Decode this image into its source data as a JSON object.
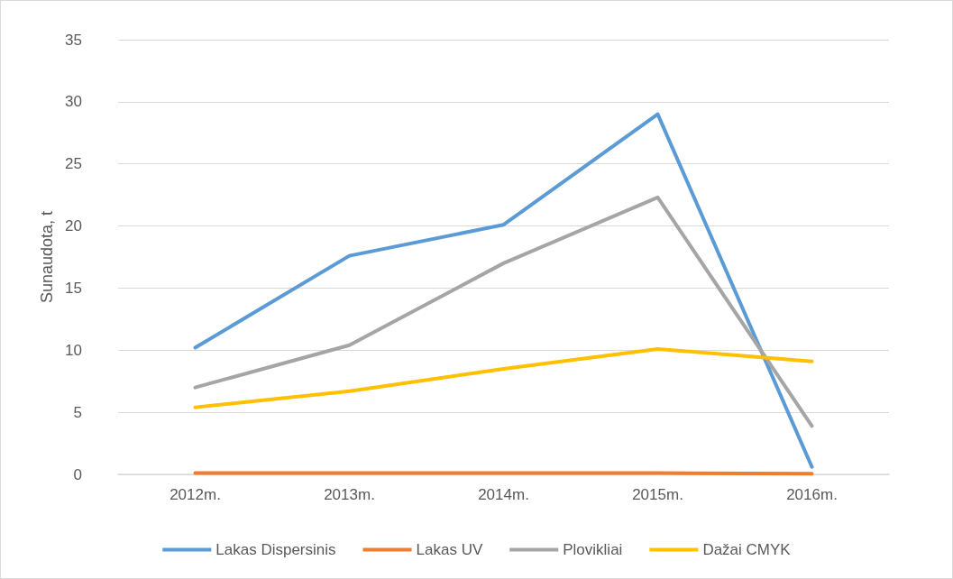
{
  "chart_data": {
    "type": "line",
    "ylabel": "Sunaudota, t",
    "categories": [
      "2012m.",
      "2013m.",
      "2014m.",
      "2015m.",
      "2016m."
    ],
    "series": [
      {
        "name": "Lakas Dispersinis",
        "color": "#5b9bd5",
        "values": [
          10.2,
          17.6,
          20.1,
          29.0,
          0.6
        ]
      },
      {
        "name": "Lakas UV",
        "color": "#ed7d31",
        "values": [
          0.1,
          0.1,
          0.1,
          0.1,
          0.05
        ]
      },
      {
        "name": "Plovikliai",
        "color": "#a5a5a5",
        "values": [
          7.0,
          10.4,
          17.0,
          22.3,
          3.9
        ]
      },
      {
        "name": "Dažai CMYK",
        "color": "#ffc000",
        "values": [
          5.4,
          6.7,
          8.5,
          10.1,
          9.1
        ]
      }
    ],
    "ylim": [
      0,
      35
    ],
    "yticks": [
      0,
      5,
      10,
      15,
      20,
      25,
      30,
      35
    ],
    "grid": "y",
    "legend": "bottom",
    "marker": "none",
    "line_style": "solid"
  }
}
